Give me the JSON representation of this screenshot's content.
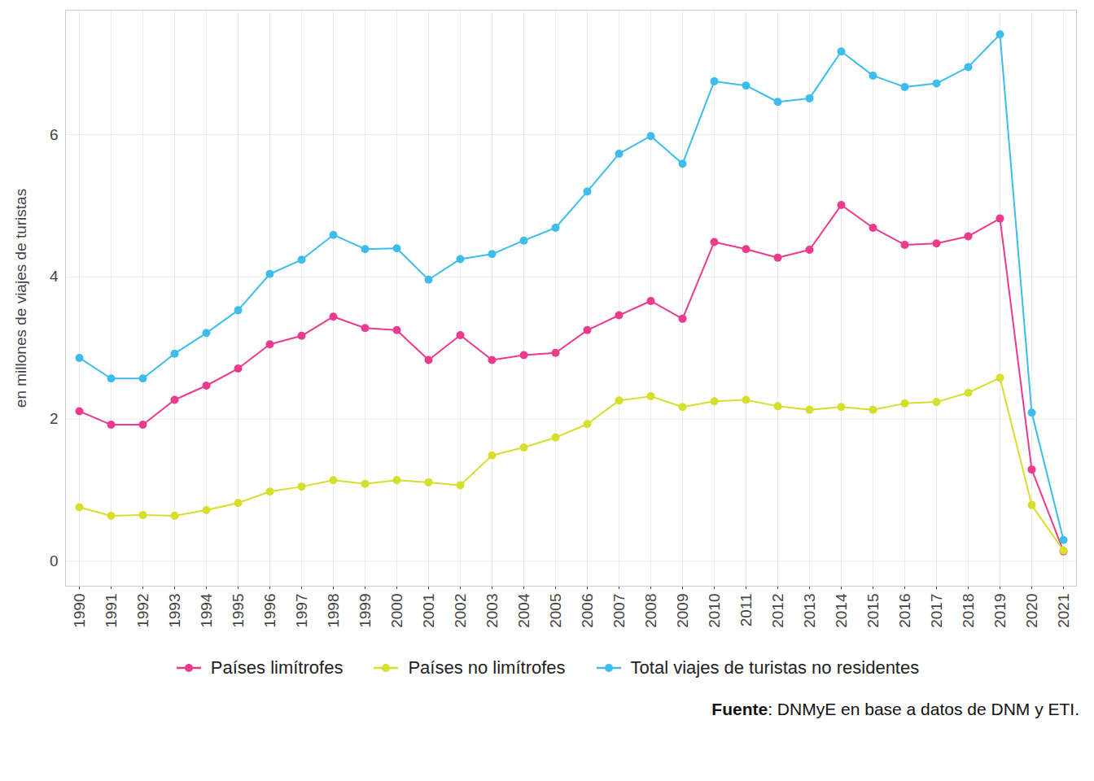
{
  "chart_data": {
    "type": "line",
    "y_label": "en millones de viajes de turistas",
    "caption": "Fuente: DNMyE en base a datos de DNM y ETI.",
    "categories": [
      "1990",
      "1991",
      "1992",
      "1993",
      "1994",
      "1995",
      "1996",
      "1997",
      "1998",
      "1999",
      "2000",
      "2001",
      "2002",
      "2003",
      "2004",
      "2005",
      "2006",
      "2007",
      "2008",
      "2009",
      "2010",
      "2011",
      "2012",
      "2013",
      "2014",
      "2015",
      "2016",
      "2017",
      "2018",
      "2019",
      "2020",
      "2021"
    ],
    "series": [
      {
        "name": "Países limítrofes",
        "color": "#EC3A8D",
        "values": [
          2.11,
          1.92,
          1.92,
          2.27,
          2.47,
          2.71,
          3.05,
          3.17,
          3.44,
          3.28,
          3.25,
          2.83,
          3.18,
          2.83,
          2.9,
          2.93,
          3.25,
          3.46,
          3.66,
          3.41,
          4.49,
          4.39,
          4.27,
          4.38,
          5.01,
          4.69,
          4.45,
          4.47,
          4.57,
          4.82,
          1.29,
          0.14
        ]
      },
      {
        "name": "Países no limítrofes",
        "color": "#D6DF2B",
        "values": [
          0.76,
          0.64,
          0.65,
          0.64,
          0.72,
          0.82,
          0.98,
          1.05,
          1.14,
          1.09,
          1.14,
          1.11,
          1.07,
          1.49,
          1.6,
          1.74,
          1.93,
          2.26,
          2.32,
          2.17,
          2.25,
          2.27,
          2.18,
          2.13,
          2.17,
          2.13,
          2.22,
          2.24,
          2.37,
          2.58,
          0.79,
          0.15
        ]
      },
      {
        "name": "Total viajes de turistas no residentes",
        "color": "#3DBDEB",
        "values": [
          2.86,
          2.57,
          2.57,
          2.92,
          3.21,
          3.53,
          4.04,
          4.24,
          4.59,
          4.39,
          4.4,
          3.96,
          4.25,
          4.32,
          4.51,
          4.69,
          5.2,
          5.73,
          5.98,
          5.59,
          6.75,
          6.69,
          6.46,
          6.51,
          7.17,
          6.83,
          6.67,
          6.72,
          6.95,
          7.41,
          2.09,
          0.3
        ]
      }
    ],
    "ylim": [
      -0.35,
      7.75
    ],
    "yticks": [
      0,
      2,
      4,
      6
    ],
    "grid": true,
    "legend": "bottom",
    "marker": "circle"
  }
}
